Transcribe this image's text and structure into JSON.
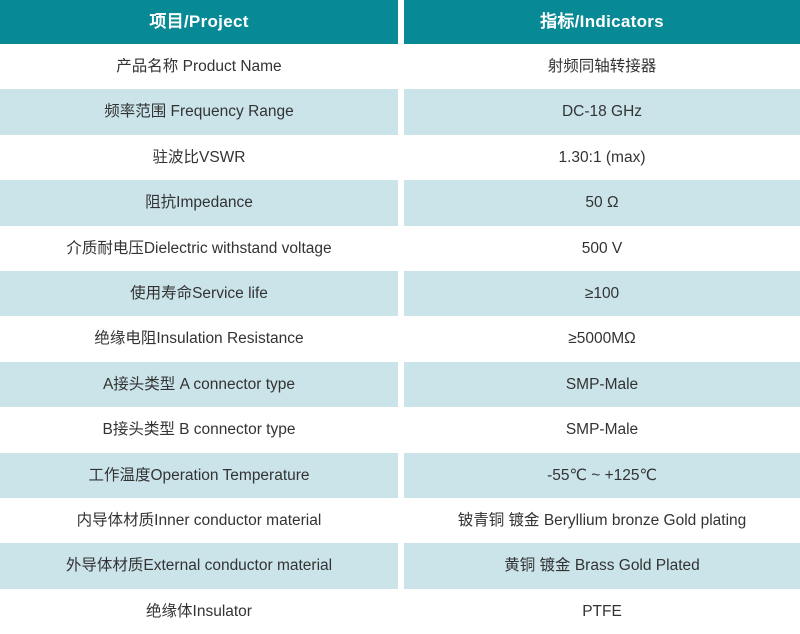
{
  "table": {
    "header": {
      "project_label": "项目/Project",
      "indicators_label": "指标/Indicators"
    },
    "rows": [
      {
        "project": "产品名称 Product Name",
        "indicator": "射频同轴转接器"
      },
      {
        "project": "频率范围 Frequency Range",
        "indicator": "DC-18 GHz"
      },
      {
        "project": "驻波比VSWR",
        "indicator": "1.30:1 (max)"
      },
      {
        "project": "阻抗Impedance",
        "indicator": "50 Ω"
      },
      {
        "project": "介质耐电压Dielectric withstand voltage",
        "indicator": "500 V"
      },
      {
        "project": "使用寿命Service life",
        "indicator": "≥100"
      },
      {
        "project": "绝缘电阻Insulation Resistance",
        "indicator": "≥5000MΩ"
      },
      {
        "project": "A接头类型 A connector type",
        "indicator": "SMP-Male"
      },
      {
        "project": "B接头类型 B connector type",
        "indicator": "SMP-Male"
      },
      {
        "project": "工作温度Operation Temperature",
        "indicator": "-55℃ ~ +125℃"
      },
      {
        "project": "内导体材质Inner conductor material",
        "indicator": "铍青铜 镀金 Beryllium bronze Gold plating"
      },
      {
        "project": "外导体材质External conductor material",
        "indicator": "黄铜 镀金 Brass Gold Plated"
      },
      {
        "project": "绝缘体Insulator",
        "indicator": "PTFE"
      }
    ],
    "colors": {
      "header_bg": "#088a96",
      "header_text": "#ffffff",
      "row_bg": "#ffffff",
      "row_alt_bg": "#cbe4ea",
      "body_text": "#333333"
    }
  }
}
